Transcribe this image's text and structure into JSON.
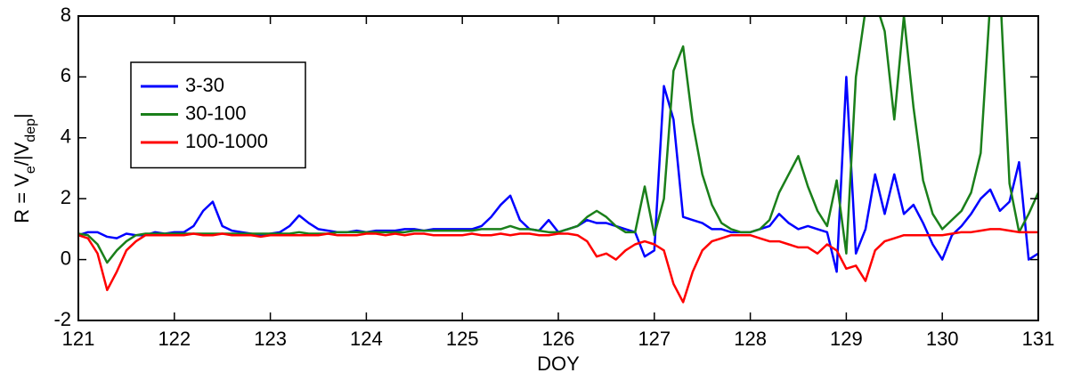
{
  "chart_data": {
    "type": "line",
    "x_label": "DOY",
    "y_label": [
      "R = V",
      "e",
      "/|V",
      "dep",
      "|"
    ],
    "x": [
      121,
      121.1,
      121.2,
      121.3,
      121.4,
      121.5,
      121.6,
      121.7,
      121.8,
      121.9,
      122,
      122.1,
      122.2,
      122.3,
      122.4,
      122.5,
      122.6,
      122.7,
      122.8,
      122.9,
      123,
      123.1,
      123.2,
      123.3,
      123.4,
      123.5,
      123.6,
      123.7,
      123.8,
      123.9,
      124,
      124.1,
      124.2,
      124.3,
      124.4,
      124.5,
      124.6,
      124.7,
      124.8,
      124.9,
      125,
      125.1,
      125.2,
      125.3,
      125.4,
      125.5,
      125.6,
      125.7,
      125.8,
      125.9,
      126,
      126.1,
      126.2,
      126.3,
      126.4,
      126.5,
      126.6,
      126.7,
      126.8,
      126.9,
      127,
      127.1,
      127.2,
      127.3,
      127.4,
      127.5,
      127.6,
      127.7,
      127.8,
      127.9,
      128,
      128.1,
      128.2,
      128.3,
      128.4,
      128.5,
      128.6,
      128.7,
      128.8,
      128.9,
      129,
      129.1,
      129.2,
      129.3,
      129.4,
      129.5,
      129.6,
      129.7,
      129.8,
      129.9,
      130,
      130.1,
      130.2,
      130.3,
      130.4,
      130.5,
      130.6,
      130.7,
      130.8,
      130.9,
      131
    ],
    "series": [
      {
        "name": "3-30",
        "color": "#0000ff",
        "values": [
          0.8,
          0.9,
          0.9,
          0.75,
          0.7,
          0.85,
          0.8,
          0.8,
          0.9,
          0.85,
          0.9,
          0.9,
          1.1,
          1.6,
          1.9,
          1.1,
          0.95,
          0.9,
          0.85,
          0.8,
          0.85,
          0.9,
          1.1,
          1.45,
          1.2,
          1.0,
          0.95,
          0.9,
          0.9,
          0.95,
          0.9,
          0.95,
          0.95,
          0.95,
          1.0,
          1.0,
          0.95,
          1.0,
          1.0,
          1.0,
          1.0,
          1.0,
          1.1,
          1.4,
          1.8,
          2.1,
          1.3,
          1.0,
          0.95,
          1.3,
          0.9,
          1.0,
          1.1,
          1.3,
          1.2,
          1.2,
          1.1,
          1.0,
          0.9,
          0.1,
          0.3,
          5.7,
          4.6,
          1.4,
          1.3,
          1.2,
          1.0,
          1.0,
          0.9,
          0.9,
          0.9,
          1.0,
          1.1,
          1.5,
          1.2,
          1.0,
          1.1,
          1.0,
          0.9,
          -0.4,
          6.0,
          0.2,
          1.0,
          2.8,
          1.5,
          2.8,
          1.5,
          1.8,
          1.2,
          0.5,
          0.0,
          0.8,
          1.1,
          1.5,
          2.0,
          2.3,
          1.6,
          1.9,
          3.2,
          0.0,
          0.2
        ]
      },
      {
        "name": "30-100",
        "color": "#1a7f1a",
        "values": [
          0.85,
          0.8,
          0.5,
          -0.1,
          0.3,
          0.6,
          0.8,
          0.85,
          0.85,
          0.85,
          0.85,
          0.85,
          0.85,
          0.85,
          0.85,
          0.85,
          0.85,
          0.85,
          0.85,
          0.85,
          0.85,
          0.85,
          0.85,
          0.9,
          0.85,
          0.85,
          0.85,
          0.9,
          0.9,
          0.9,
          0.9,
          0.9,
          0.9,
          0.9,
          0.9,
          0.95,
          0.95,
          0.95,
          0.95,
          0.95,
          0.95,
          0.95,
          1.0,
          1.0,
          1.0,
          1.1,
          1.0,
          1.0,
          0.95,
          0.9,
          0.9,
          1.0,
          1.1,
          1.4,
          1.6,
          1.4,
          1.1,
          0.9,
          0.9,
          2.4,
          0.8,
          2.0,
          6.2,
          7.0,
          4.5,
          2.8,
          1.8,
          1.2,
          1.0,
          0.9,
          0.9,
          1.0,
          1.3,
          2.2,
          2.8,
          3.4,
          2.4,
          1.6,
          1.1,
          2.6,
          0.2,
          6.0,
          8.2,
          8.5,
          7.5,
          4.6,
          8.0,
          5.0,
          2.6,
          1.5,
          1.0,
          1.3,
          1.6,
          2.2,
          3.5,
          8.5,
          9.0,
          2.5,
          0.9,
          1.5,
          2.2
        ]
      },
      {
        "name": "100-1000",
        "color": "#ff0000",
        "values": [
          0.8,
          0.7,
          0.2,
          -1.0,
          -0.4,
          0.3,
          0.6,
          0.8,
          0.8,
          0.8,
          0.8,
          0.8,
          0.85,
          0.8,
          0.8,
          0.85,
          0.8,
          0.8,
          0.8,
          0.75,
          0.8,
          0.8,
          0.8,
          0.8,
          0.8,
          0.8,
          0.85,
          0.8,
          0.8,
          0.8,
          0.85,
          0.85,
          0.8,
          0.85,
          0.8,
          0.85,
          0.85,
          0.8,
          0.8,
          0.8,
          0.8,
          0.85,
          0.8,
          0.8,
          0.85,
          0.8,
          0.85,
          0.85,
          0.8,
          0.8,
          0.85,
          0.85,
          0.8,
          0.6,
          0.1,
          0.2,
          0.0,
          0.3,
          0.5,
          0.6,
          0.5,
          0.3,
          -0.8,
          -1.4,
          -0.4,
          0.3,
          0.6,
          0.7,
          0.8,
          0.8,
          0.8,
          0.7,
          0.6,
          0.6,
          0.5,
          0.4,
          0.4,
          0.2,
          0.5,
          0.3,
          -0.3,
          -0.2,
          -0.7,
          0.3,
          0.6,
          0.7,
          0.8,
          0.8,
          0.8,
          0.8,
          0.8,
          0.85,
          0.9,
          0.9,
          0.95,
          1.0,
          1.0,
          0.95,
          0.9,
          0.9,
          0.9
        ]
      }
    ],
    "xlim": [
      121,
      131
    ],
    "xticks": [
      121,
      122,
      123,
      124,
      125,
      126,
      127,
      128,
      129,
      130,
      131
    ],
    "ylim": [
      -2,
      8
    ],
    "yticks": [
      -2,
      0,
      2,
      4,
      6,
      8
    ],
    "legend": "upper-left"
  }
}
